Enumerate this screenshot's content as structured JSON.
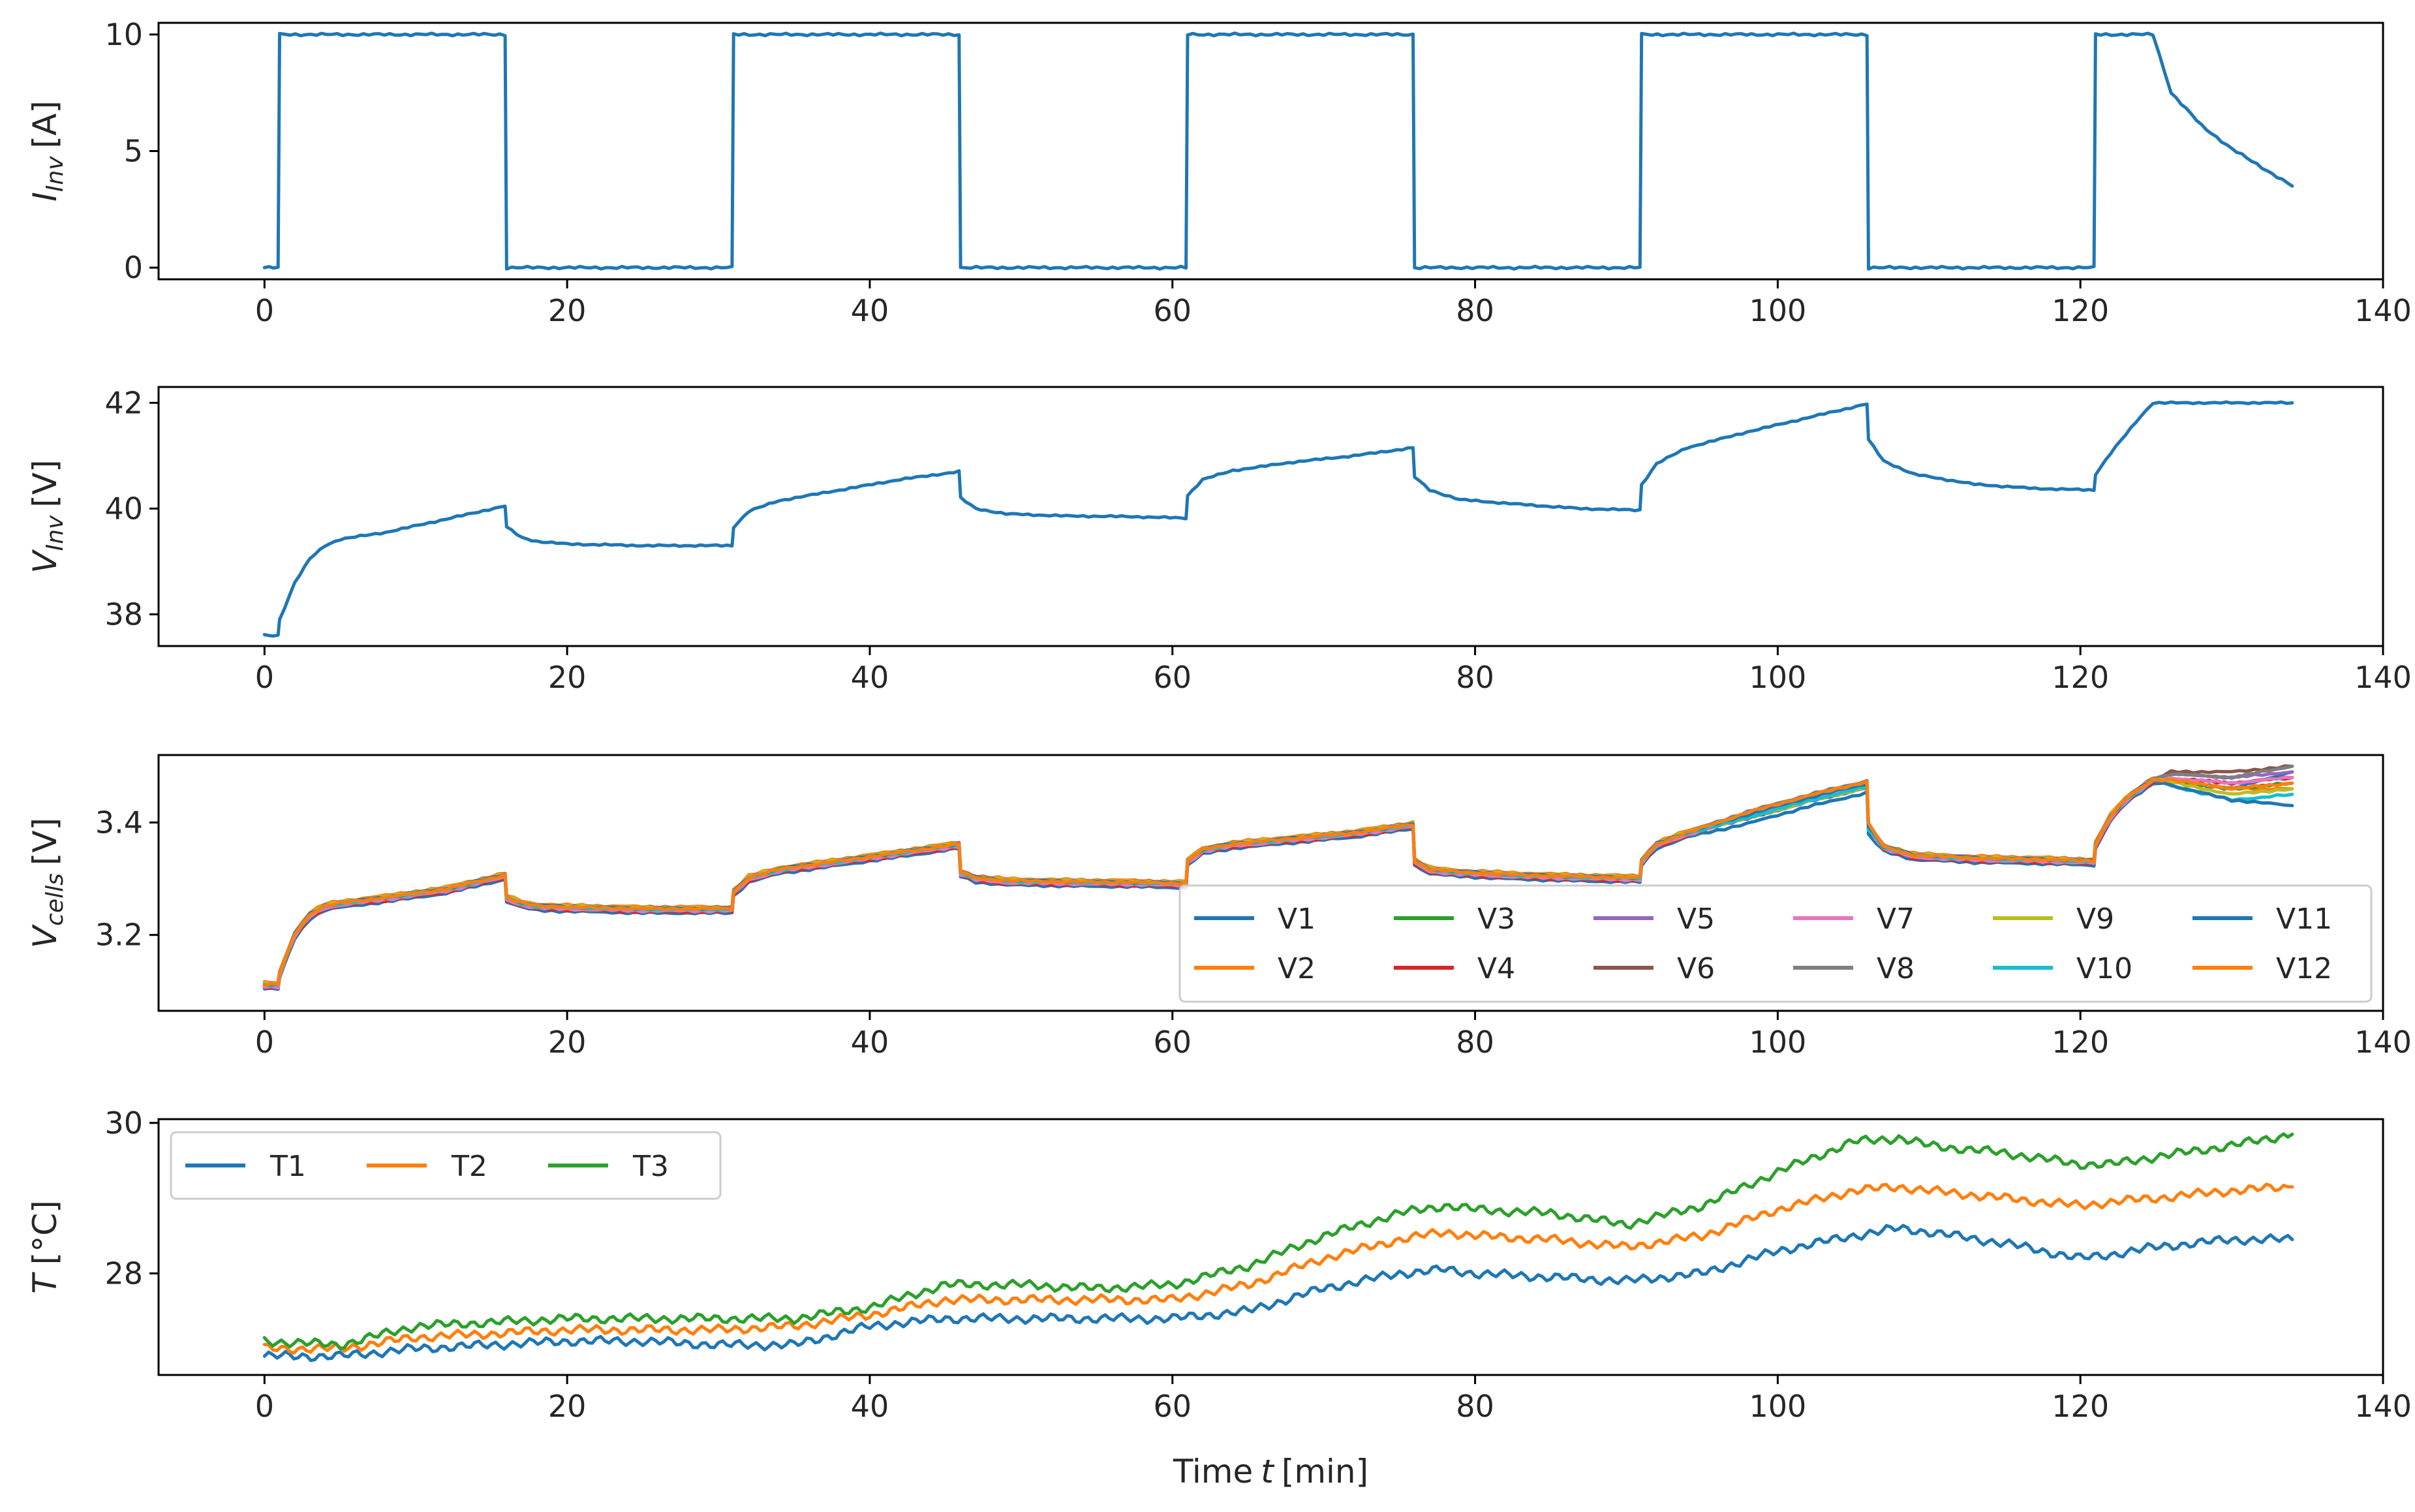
{
  "chart_data": [
    {
      "type": "line",
      "id": "p1",
      "ylabel_main": "I",
      "ylabel_sub": "Inv",
      "ylabel_unit": "[A]",
      "xlim": [
        -7,
        140
      ],
      "ylim": [
        -0.5,
        10.5
      ],
      "xticks": [
        0,
        20,
        40,
        60,
        80,
        100,
        120,
        140
      ],
      "xticklabels": [
        "0",
        "20",
        "40",
        "60",
        "80",
        "100",
        "120",
        "140"
      ],
      "yticks": [
        0,
        5,
        10
      ],
      "yticklabels": [
        "0",
        "5",
        "10"
      ],
      "series": [
        {
          "name": "I_Inv",
          "color": "#1f77b4",
          "x": [
            0,
            0.9,
            1.0,
            15.9,
            16.0,
            30.9,
            31.0,
            45.9,
            46.0,
            60.9,
            61.0,
            75.9,
            76.0,
            90.9,
            91.0,
            105.9,
            106.0,
            120.9,
            121.0,
            124.8,
            126,
            128,
            130,
            132,
            134
          ],
          "y": [
            0,
            0,
            10,
            10,
            0,
            0,
            10,
            10,
            0,
            0,
            10,
            10,
            0,
            0,
            10,
            10,
            0,
            0,
            10,
            10,
            7.5,
            6.1,
            5.1,
            4.3,
            3.5
          ]
        }
      ]
    },
    {
      "type": "line",
      "id": "p2",
      "ylabel_main": "V",
      "ylabel_sub": "Inv",
      "ylabel_unit": "[V]",
      "xlim": [
        -7,
        140
      ],
      "ylim": [
        37.4,
        42.3
      ],
      "xticks": [
        0,
        20,
        40,
        60,
        80,
        100,
        120,
        140
      ],
      "xticklabels": [
        "0",
        "20",
        "40",
        "60",
        "80",
        "100",
        "120",
        "140"
      ],
      "yticks": [
        38,
        40,
        42
      ],
      "yticklabels": [
        "38",
        "40",
        "42"
      ],
      "series": [
        {
          "name": "V_Inv",
          "color": "#1f77b4",
          "x": [
            0,
            0.9,
            1.0,
            2,
            3,
            4,
            5,
            8,
            12,
            15.9,
            16.0,
            17,
            18,
            20,
            25,
            30.9,
            31.0,
            32,
            34,
            38,
            42,
            45.9,
            46.0,
            47,
            49,
            53,
            57,
            60.9,
            61.0,
            62,
            64,
            68,
            72,
            75.9,
            76.0,
            77,
            79,
            83,
            87,
            90.9,
            91.0,
            92,
            94,
            98,
            102,
            105.9,
            106.0,
            107,
            109,
            113,
            117,
            120.9,
            121.0,
            122,
            123,
            124,
            124.8,
            126,
            130,
            134
          ],
          "y": [
            37.6,
            37.6,
            37.9,
            38.6,
            39.05,
            39.3,
            39.42,
            39.55,
            39.8,
            40.05,
            39.65,
            39.45,
            39.38,
            39.33,
            39.3,
            39.3,
            39.65,
            39.95,
            40.15,
            40.35,
            40.55,
            40.7,
            40.2,
            40.0,
            39.9,
            39.86,
            39.85,
            39.82,
            40.25,
            40.55,
            40.72,
            40.88,
            41.0,
            41.15,
            40.6,
            40.35,
            40.17,
            40.08,
            40.0,
            39.97,
            40.45,
            40.85,
            41.15,
            41.45,
            41.72,
            41.98,
            41.3,
            40.9,
            40.65,
            40.46,
            40.38,
            40.35,
            40.65,
            41.05,
            41.4,
            41.75,
            42.0,
            42.0,
            42.0,
            42.0
          ]
        }
      ]
    },
    {
      "type": "line",
      "id": "p3",
      "ylabel_main": "V",
      "ylabel_sub": "cells",
      "ylabel_unit": "[V]",
      "xlim": [
        -7,
        140
      ],
      "ylim": [
        3.065,
        3.52
      ],
      "xticks": [
        0,
        20,
        40,
        60,
        80,
        100,
        120,
        140
      ],
      "xticklabels": [
        "0",
        "20",
        "40",
        "60",
        "80",
        "100",
        "120",
        "140"
      ],
      "yticks": [
        3.2,
        3.4
      ],
      "yticklabels": [
        "3.2",
        "3.4"
      ],
      "legend_position": "lower-right",
      "legend_ncol": 6,
      "x": [
        0,
        0.9,
        1.0,
        2,
        3,
        4,
        5,
        8,
        12,
        15.9,
        16.0,
        17,
        18,
        20,
        25,
        30.9,
        31.0,
        32,
        34,
        38,
        42,
        45.9,
        46.0,
        47,
        49,
        53,
        57,
        60.9,
        61.0,
        62,
        64,
        68,
        72,
        75.9,
        76.0,
        77,
        79,
        83,
        87,
        90.9,
        91.0,
        92,
        94,
        98,
        102,
        105.9,
        106.0,
        107,
        109,
        113,
        117,
        120.9,
        121.0,
        122,
        123,
        124,
        124.8,
        126,
        130,
        134
      ],
      "series": [
        {
          "name": "V1",
          "color": "#1f77b4",
          "end_values": [
            3.46,
            3.49
          ]
        },
        {
          "name": "V2",
          "color": "#ff7f0e",
          "end_values": [
            3.46,
            3.46
          ]
        },
        {
          "name": "V3",
          "color": "#2ca02c",
          "end_values": [
            3.46,
            3.47
          ]
        },
        {
          "name": "V4",
          "color": "#d62728",
          "end_values": [
            3.47,
            3.48
          ]
        },
        {
          "name": "V5",
          "color": "#9467bd",
          "end_values": [
            3.48,
            3.49
          ]
        },
        {
          "name": "V6",
          "color": "#8c564b",
          "end_values": [
            3.49,
            3.5
          ]
        },
        {
          "name": "V7",
          "color": "#e377c2",
          "end_values": [
            3.47,
            3.48
          ]
        },
        {
          "name": "V8",
          "color": "#7f7f7f",
          "end_values": [
            3.48,
            3.5
          ]
        },
        {
          "name": "V9",
          "color": "#bcbd22",
          "end_values": [
            3.45,
            3.46
          ]
        },
        {
          "name": "V10",
          "color": "#17becf",
          "end_values": [
            3.44,
            3.45
          ]
        },
        {
          "name": "V11",
          "color": "#1f77b4",
          "end_values": [
            3.44,
            3.43
          ]
        },
        {
          "name": "V12",
          "color": "#ff7f0e",
          "end_values": [
            3.46,
            3.47
          ]
        }
      ],
      "base": [
        3.11,
        3.11,
        3.13,
        3.2,
        3.235,
        3.25,
        3.255,
        3.265,
        3.28,
        3.305,
        3.265,
        3.255,
        3.25,
        3.248,
        3.245,
        3.245,
        3.275,
        3.3,
        3.315,
        3.33,
        3.345,
        3.36,
        3.31,
        3.3,
        3.295,
        3.293,
        3.292,
        3.29,
        3.33,
        3.35,
        3.36,
        3.37,
        3.38,
        3.395,
        3.33,
        3.315,
        3.31,
        3.305,
        3.302,
        3.3,
        3.33,
        3.36,
        3.38,
        3.41,
        3.44,
        3.465,
        3.39,
        3.355,
        3.34,
        3.335,
        3.333,
        3.33,
        3.36,
        3.41,
        3.44,
        3.46,
        3.475,
        3.48,
        3.482,
        3.485
      ]
    },
    {
      "type": "line",
      "id": "p4",
      "ylabel_main": "T",
      "ylabel_unit": "[°C]",
      "xlabel_main": "Time",
      "xlabel_var": "t",
      "xlabel_unit": "[min]",
      "xlim": [
        -7,
        140
      ],
      "ylim": [
        26.65,
        30.05
      ],
      "xticks": [
        0,
        20,
        40,
        60,
        80,
        100,
        120,
        140
      ],
      "xticklabels": [
        "0",
        "20",
        "40",
        "60",
        "80",
        "100",
        "120",
        "140"
      ],
      "yticks": [
        28,
        30
      ],
      "yticklabels": [
        "28",
        "30"
      ],
      "legend_position": "upper-left",
      "legend_ncol": 3,
      "x": [
        0,
        5,
        10,
        15,
        20,
        25,
        30,
        35,
        40,
        45,
        50,
        55,
        60,
        65,
        70,
        75,
        78,
        80,
        85,
        90,
        95,
        100,
        105,
        108,
        110,
        115,
        120,
        122,
        125,
        130,
        134
      ],
      "series": [
        {
          "name": "T1",
          "color": "#1f77b4",
          "values": [
            26.9,
            26.9,
            27.0,
            27.05,
            27.1,
            27.1,
            27.05,
            27.05,
            27.3,
            27.4,
            27.4,
            27.4,
            27.4,
            27.5,
            27.8,
            28.0,
            28.05,
            28.0,
            27.95,
            27.9,
            28.0,
            28.3,
            28.5,
            28.6,
            28.55,
            28.4,
            28.2,
            28.25,
            28.35,
            28.45,
            28.45
          ]
        },
        {
          "name": "T2",
          "color": "#ff7f0e",
          "values": [
            27.0,
            27.0,
            27.15,
            27.2,
            27.25,
            27.25,
            27.25,
            27.3,
            27.45,
            27.65,
            27.65,
            27.65,
            27.65,
            27.85,
            28.2,
            28.45,
            28.55,
            28.5,
            28.45,
            28.35,
            28.5,
            28.85,
            29.1,
            29.15,
            29.1,
            29.0,
            28.9,
            28.95,
            29.0,
            29.1,
            29.15
          ]
        },
        {
          "name": "T3",
          "color": "#2ca02c",
          "values": [
            27.1,
            27.05,
            27.3,
            27.35,
            27.4,
            27.4,
            27.4,
            27.4,
            27.55,
            27.85,
            27.85,
            27.8,
            27.85,
            28.1,
            28.5,
            28.8,
            28.9,
            28.85,
            28.8,
            28.65,
            28.9,
            29.35,
            29.75,
            29.8,
            29.7,
            29.6,
            29.45,
            29.45,
            29.55,
            29.7,
            29.85
          ]
        }
      ]
    }
  ]
}
